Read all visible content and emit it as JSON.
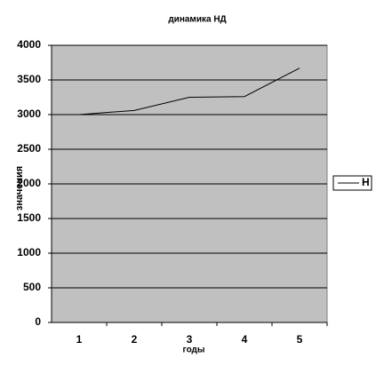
{
  "chart_data": {
    "type": "line",
    "title": "динамика НД",
    "x_label": "годы",
    "y_label": "значения",
    "categories": [
      "1",
      "2",
      "3",
      "4",
      "5"
    ],
    "series": [
      {
        "name": "Н",
        "color": "#000000",
        "values": [
          3000,
          3060,
          3250,
          3260,
          3670
        ]
      }
    ],
    "ylim": [
      0,
      4000
    ],
    "yticks": [
      0,
      500,
      1000,
      1500,
      2000,
      2500,
      3000,
      3500,
      4000
    ],
    "grid": true,
    "plot_background": "#c0c0c0",
    "legend": "right"
  }
}
